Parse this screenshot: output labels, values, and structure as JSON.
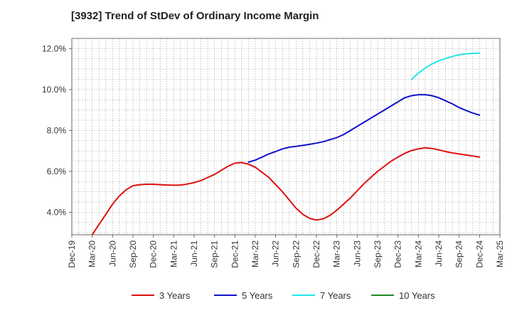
{
  "chart_data": {
    "type": "line",
    "title": "[3932]  Trend of StDev of Ordinary Income Margin",
    "xlabel": "",
    "ylabel": "",
    "x_ticks": [
      "Dec-19",
      "Mar-20",
      "Jun-20",
      "Sep-20",
      "Dec-20",
      "Mar-21",
      "Jun-21",
      "Sep-21",
      "Dec-21",
      "Mar-22",
      "Jun-22",
      "Sep-22",
      "Dec-22",
      "Mar-23",
      "Jun-23",
      "Sep-23",
      "Dec-23",
      "Mar-24",
      "Jun-24",
      "Sep-24",
      "Dec-24",
      "Mar-25"
    ],
    "y_ticks": [
      "4.0%",
      "6.0%",
      "8.0%",
      "10.0%",
      "12.0%"
    ],
    "y_tick_values": [
      4,
      6,
      8,
      10,
      12
    ],
    "ylim": [
      2.9,
      12.5
    ],
    "grid": true,
    "legend_position": "bottom",
    "series": [
      {
        "name": "3 Years",
        "color": "#dd1111",
        "points": [
          [
            "Mar-20",
            2.9
          ],
          [
            "Apr-20",
            3.4
          ],
          [
            "May-20",
            3.9
          ],
          [
            "Jun-20",
            4.4
          ],
          [
            "Jul-20",
            4.8
          ],
          [
            "Aug-20",
            5.1
          ],
          [
            "Sep-20",
            5.3
          ],
          [
            "Oct-20",
            5.35
          ],
          [
            "Nov-20",
            5.37
          ],
          [
            "Dec-20",
            5.37
          ],
          [
            "Jan-21",
            5.35
          ],
          [
            "Feb-21",
            5.33
          ],
          [
            "Mar-21",
            5.32
          ],
          [
            "Apr-21",
            5.33
          ],
          [
            "May-21",
            5.38
          ],
          [
            "Jun-21",
            5.45
          ],
          [
            "Jul-21",
            5.55
          ],
          [
            "Aug-21",
            5.7
          ],
          [
            "Sep-21",
            5.85
          ],
          [
            "Oct-21",
            6.05
          ],
          [
            "Nov-21",
            6.25
          ],
          [
            "Dec-21",
            6.4
          ],
          [
            "Jan-22",
            6.43
          ],
          [
            "Feb-22",
            6.35
          ],
          [
            "Mar-22",
            6.2
          ],
          [
            "Apr-22",
            5.95
          ],
          [
            "May-22",
            5.7
          ],
          [
            "Jun-22",
            5.35
          ],
          [
            "Jul-22",
            5.0
          ],
          [
            "Aug-22",
            4.6
          ],
          [
            "Sep-22",
            4.2
          ],
          [
            "Oct-22",
            3.9
          ],
          [
            "Nov-22",
            3.7
          ],
          [
            "Dec-22",
            3.62
          ],
          [
            "Jan-23",
            3.68
          ],
          [
            "Feb-23",
            3.85
          ],
          [
            "Mar-23",
            4.1
          ],
          [
            "Apr-23",
            4.4
          ],
          [
            "May-23",
            4.7
          ],
          [
            "Jun-23",
            5.05
          ],
          [
            "Jul-23",
            5.4
          ],
          [
            "Aug-23",
            5.7
          ],
          [
            "Sep-23",
            6.0
          ],
          [
            "Oct-23",
            6.25
          ],
          [
            "Nov-23",
            6.5
          ],
          [
            "Dec-23",
            6.7
          ],
          [
            "Jan-24",
            6.88
          ],
          [
            "Feb-24",
            7.02
          ],
          [
            "Mar-24",
            7.1
          ],
          [
            "Apr-24",
            7.15
          ],
          [
            "May-24",
            7.12
          ],
          [
            "Jun-24",
            7.05
          ],
          [
            "Jul-24",
            6.97
          ],
          [
            "Aug-24",
            6.9
          ],
          [
            "Sep-24",
            6.85
          ],
          [
            "Oct-24",
            6.8
          ],
          [
            "Nov-24",
            6.75
          ],
          [
            "Dec-24",
            6.7
          ]
        ]
      },
      {
        "name": "5 Years",
        "color": "#1111cc",
        "points": [
          [
            "Feb-22",
            6.45
          ],
          [
            "Mar-22",
            6.55
          ],
          [
            "Apr-22",
            6.7
          ],
          [
            "May-22",
            6.85
          ],
          [
            "Jun-22",
            6.97
          ],
          [
            "Jul-22",
            7.1
          ],
          [
            "Aug-22",
            7.18
          ],
          [
            "Sep-22",
            7.22
          ],
          [
            "Oct-22",
            7.27
          ],
          [
            "Nov-22",
            7.32
          ],
          [
            "Dec-22",
            7.38
          ],
          [
            "Jan-23",
            7.45
          ],
          [
            "Feb-23",
            7.55
          ],
          [
            "Mar-23",
            7.65
          ],
          [
            "Apr-23",
            7.8
          ],
          [
            "May-23",
            8.0
          ],
          [
            "Jun-23",
            8.2
          ],
          [
            "Jul-23",
            8.4
          ],
          [
            "Aug-23",
            8.6
          ],
          [
            "Sep-23",
            8.8
          ],
          [
            "Oct-23",
            9.0
          ],
          [
            "Nov-23",
            9.2
          ],
          [
            "Dec-23",
            9.4
          ],
          [
            "Jan-24",
            9.6
          ],
          [
            "Feb-24",
            9.7
          ],
          [
            "Mar-24",
            9.75
          ],
          [
            "Apr-24",
            9.75
          ],
          [
            "May-24",
            9.7
          ],
          [
            "Jun-24",
            9.6
          ],
          [
            "Jul-24",
            9.45
          ],
          [
            "Aug-24",
            9.3
          ],
          [
            "Sep-24",
            9.12
          ],
          [
            "Oct-24",
            8.98
          ],
          [
            "Nov-24",
            8.85
          ],
          [
            "Dec-24",
            8.75
          ]
        ]
      },
      {
        "name": "7 Years",
        "color": "#22e5e5",
        "points": [
          [
            "Feb-24",
            10.5
          ],
          [
            "Mar-24",
            10.8
          ],
          [
            "Apr-24",
            11.05
          ],
          [
            "May-24",
            11.25
          ],
          [
            "Jun-24",
            11.4
          ],
          [
            "Jul-24",
            11.52
          ],
          [
            "Aug-24",
            11.62
          ],
          [
            "Sep-24",
            11.7
          ],
          [
            "Oct-24",
            11.74
          ],
          [
            "Nov-24",
            11.77
          ],
          [
            "Dec-24",
            11.78
          ]
        ]
      },
      {
        "name": "10 Years",
        "color": "#228822",
        "points": []
      }
    ]
  }
}
